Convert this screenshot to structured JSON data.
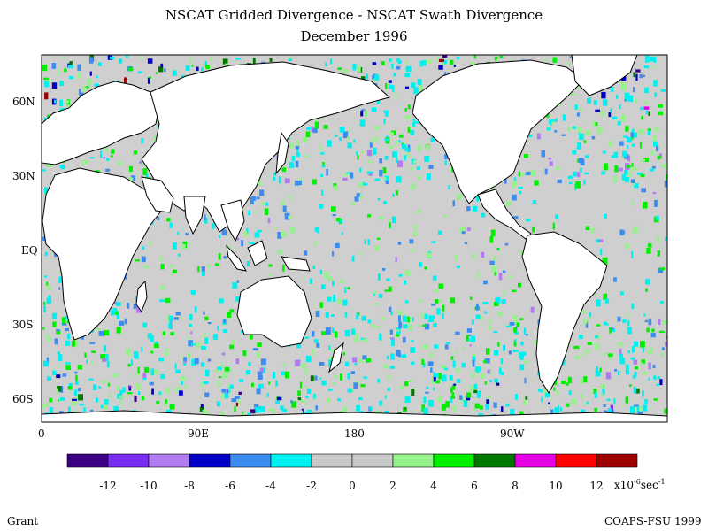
{
  "title_line1": "NSCAT Gridded Divergence - NSCAT Swath Divergence",
  "title_line2": "December 1996",
  "lat_labels": [
    "60N",
    "30N",
    "EQ",
    "30S",
    "60S"
  ],
  "lon_labels": [
    "0",
    "90E",
    "180",
    "90W"
  ],
  "colorbar": {
    "colors": [
      "#3c0082",
      "#7a2cf0",
      "#b07cf0",
      "#0000c8",
      "#3c8cf0",
      "#00f0f0",
      "#c8c8c8",
      "#c8c8c8",
      "#96f08c",
      "#00f000",
      "#007800",
      "#e600e6",
      "#ff0000",
      "#9c0000"
    ],
    "tick_labels": [
      "-12",
      "-10",
      "-8",
      "-6",
      "-4",
      "-2",
      "0",
      "2",
      "4",
      "6",
      "8",
      "10",
      "12"
    ]
  },
  "units": {
    "prefix": "x10",
    "exponent": "-6",
    "suffix": "sec",
    "suffix_exp": "-1"
  },
  "author": "Grant",
  "credit": "COAPS-FSU 1999"
}
